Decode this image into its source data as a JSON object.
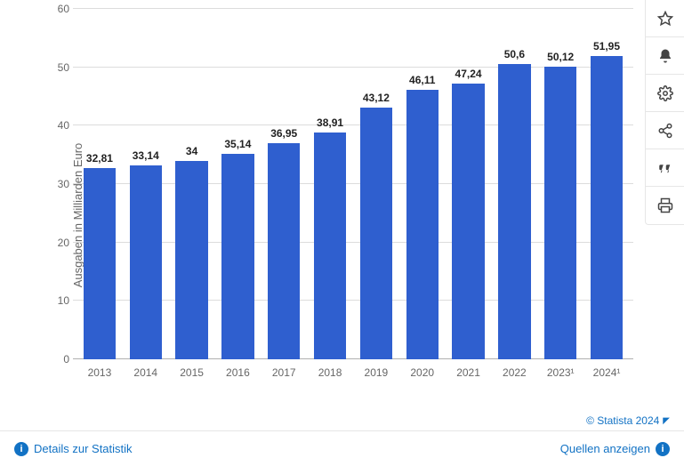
{
  "chart": {
    "type": "bar",
    "ylabel": "Ausgaben in Milliarden Euro",
    "label_fontsize": 13,
    "value_fontsize": 12,
    "value_fontweight": 600,
    "axis_fontsize": 12,
    "ylim": [
      0,
      60
    ],
    "ytick_step": 10,
    "yticks": [
      "0",
      "10",
      "20",
      "30",
      "40",
      "50",
      "60"
    ],
    "categories": [
      "2013",
      "2014",
      "2015",
      "2016",
      "2017",
      "2018",
      "2019",
      "2020",
      "2021",
      "2022",
      "2023¹",
      "2024¹"
    ],
    "values": [
      32.81,
      33.14,
      34,
      35.14,
      36.95,
      38.91,
      43.12,
      46.11,
      47.24,
      50.6,
      50.12,
      51.95
    ],
    "value_labels": [
      "32,81",
      "33,14",
      "34",
      "35,14",
      "36,95",
      "38,91",
      "43,12",
      "46,11",
      "47,24",
      "50,6",
      "50,12",
      "51,95"
    ],
    "bar_color": "#2f5fcf",
    "bar_width": 0.7,
    "background_color": "#ffffff",
    "grid_color": "#dcdcdc",
    "axis_color": "#b0b0b0",
    "text_color": "#666666",
    "value_color": "#222222"
  },
  "toolbar": {
    "items": [
      {
        "name": "star-icon"
      },
      {
        "name": "bell-icon"
      },
      {
        "name": "gear-icon"
      },
      {
        "name": "share-icon"
      },
      {
        "name": "quote-icon"
      },
      {
        "name": "print-icon"
      }
    ]
  },
  "footer": {
    "details_label": "Details zur Statistik",
    "sources_label": "Quellen anzeigen"
  },
  "brand": {
    "text": "© Statista 2024"
  }
}
